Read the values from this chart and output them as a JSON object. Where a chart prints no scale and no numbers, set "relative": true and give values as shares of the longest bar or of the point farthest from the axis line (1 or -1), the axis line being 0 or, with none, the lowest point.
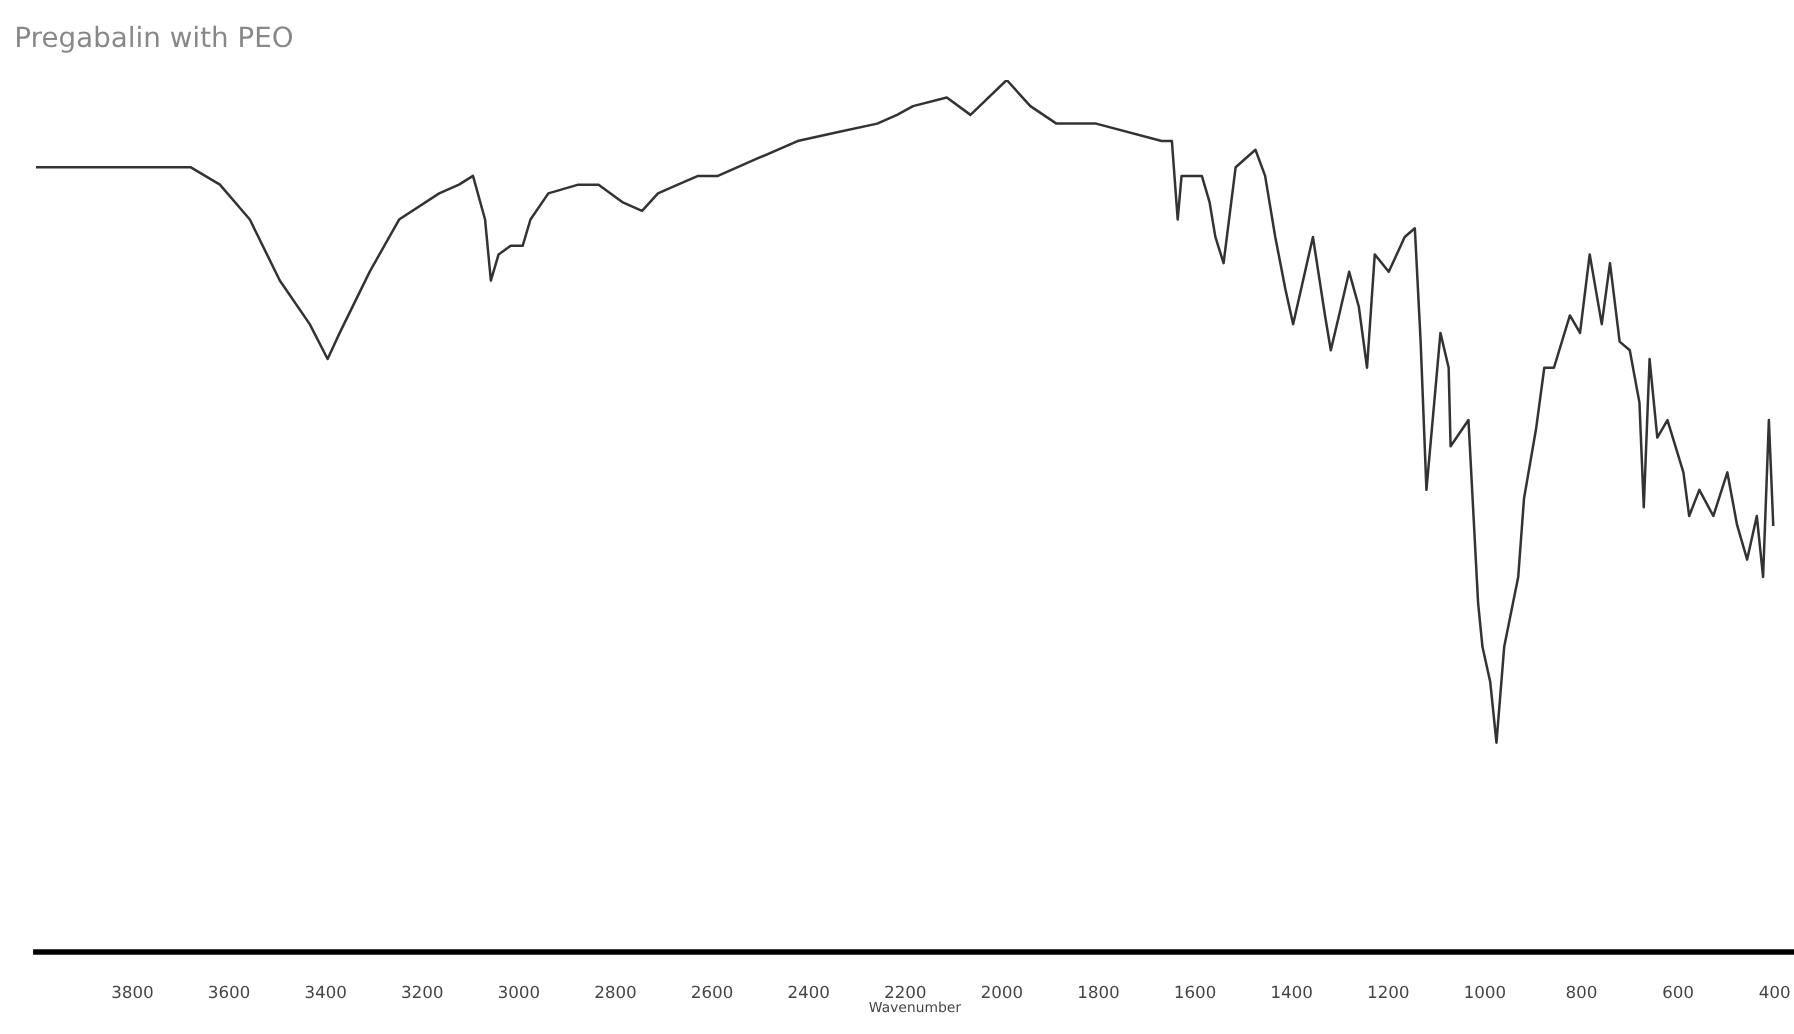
{
  "chart_data": {
    "type": "line",
    "title": "Pregabalin with PEO",
    "xlabel": "Wavenumber",
    "relative": true,
    "xlim": [
      4000,
      360
    ],
    "xticks": [
      3800,
      3600,
      3400,
      3200,
      3000,
      2800,
      2600,
      2400,
      2200,
      2000,
      1800,
      1600,
      1400,
      1200,
      1000,
      800,
      600,
      400
    ],
    "grid": false,
    "marker": "none",
    "line_style": "solid",
    "series": [
      {
        "color": "#333333",
        "x": [
          3998,
          3907,
          3742,
          3680,
          3619,
          3557,
          3495,
          3433,
          3396,
          3371,
          3309,
          3248,
          3165,
          3124,
          3095,
          3070,
          3058,
          3042,
          3017,
          2992,
          2976,
          2939,
          2877,
          2835,
          2786,
          2745,
          2712,
          2671,
          2629,
          2588,
          2506,
          2423,
          2341,
          2258,
          2217,
          2184,
          2114,
          2065,
          1990,
          1941,
          1887,
          1805,
          1669,
          1648,
          1636,
          1628,
          1586,
          1570,
          1558,
          1541,
          1516,
          1475,
          1455,
          1434,
          1413,
          1397,
          1356,
          1331,
          1319,
          1302,
          1281,
          1261,
          1244,
          1228,
          1199,
          1166,
          1145,
          1133,
          1121,
          1092,
          1075,
          1071,
          1034,
          1014,
          1005,
          989,
          976,
          960,
          931,
          919,
          894,
          877,
          857,
          824,
          803,
          783,
          758,
          741,
          721,
          700,
          680,
          671,
          659,
          643,
          622,
          589,
          577,
          556,
          527,
          498,
          478,
          457,
          437,
          424,
          412,
          403
        ],
        "values": [
          0.9,
          0.9,
          0.9,
          0.9,
          0.88,
          0.84,
          0.77,
          0.72,
          0.68,
          0.71,
          0.78,
          0.84,
          0.87,
          0.88,
          0.89,
          0.84,
          0.77,
          0.8,
          0.81,
          0.81,
          0.84,
          0.87,
          0.88,
          0.88,
          0.86,
          0.85,
          0.87,
          0.88,
          0.89,
          0.89,
          0.91,
          0.93,
          0.94,
          0.95,
          0.96,
          0.97,
          0.98,
          0.96,
          1.0,
          0.97,
          0.95,
          0.95,
          0.93,
          0.93,
          0.84,
          0.89,
          0.89,
          0.86,
          0.82,
          0.79,
          0.9,
          0.92,
          0.89,
          0.82,
          0.76,
          0.72,
          0.82,
          0.73,
          0.69,
          0.73,
          0.78,
          0.74,
          0.67,
          0.8,
          0.78,
          0.82,
          0.83,
          0.7,
          0.53,
          0.71,
          0.67,
          0.58,
          0.61,
          0.4,
          0.35,
          0.31,
          0.24,
          0.35,
          0.43,
          0.52,
          0.6,
          0.67,
          0.67,
          0.73,
          0.71,
          0.8,
          0.72,
          0.79,
          0.7,
          0.69,
          0.63,
          0.51,
          0.68,
          0.59,
          0.61,
          0.55,
          0.5,
          0.53,
          0.5,
          0.55,
          0.49,
          0.45,
          0.5,
          0.43,
          0.61,
          0.49
        ]
      }
    ]
  }
}
